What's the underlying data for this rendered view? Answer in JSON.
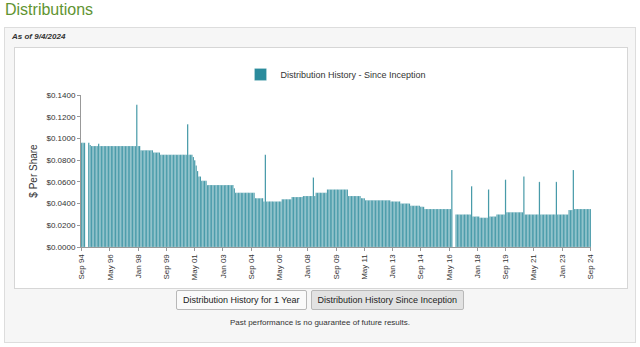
{
  "page": {
    "heading": "Distributions",
    "as_of": "As of 9/4/2024",
    "buttons": [
      "Distribution History for 1 Year",
      "Distribution History Since Inception"
    ],
    "footnote": "Past performance is no guarantee of future results."
  },
  "chart_data": {
    "type": "bar",
    "y_label": "$ Per Share",
    "legend": "top",
    "grid": false,
    "ylim": [
      0,
      0.14
    ],
    "yticks": [
      {
        "value": 0,
        "label": "$0.0000"
      },
      {
        "value": 0.02,
        "label": "$0.0200"
      },
      {
        "value": 0.04,
        "label": "$0.0400"
      },
      {
        "value": 0.06,
        "label": "$0.0600"
      },
      {
        "value": 0.08,
        "label": "$0.0800"
      },
      {
        "value": 0.1,
        "label": "$0.1000"
      },
      {
        "value": 0.12,
        "label": "$0.1200"
      },
      {
        "value": 0.14,
        "label": "$0.1400"
      }
    ],
    "categories": [
      "Sep 94",
      null,
      null,
      null,
      null,
      null,
      null,
      null,
      null,
      null,
      null,
      null,
      null,
      null,
      null,
      null,
      null,
      null,
      null,
      null,
      "May 96",
      null,
      null,
      null,
      null,
      null,
      null,
      null,
      null,
      null,
      null,
      null,
      null,
      null,
      null,
      null,
      null,
      null,
      null,
      null,
      "Jan 98",
      null,
      null,
      null,
      null,
      null,
      null,
      null,
      null,
      null,
      null,
      null,
      null,
      null,
      null,
      null,
      null,
      null,
      null,
      null,
      "Sep 99",
      null,
      null,
      null,
      null,
      null,
      null,
      null,
      null,
      null,
      null,
      null,
      null,
      null,
      null,
      null,
      null,
      null,
      null,
      null,
      "May 01",
      null,
      null,
      null,
      null,
      null,
      null,
      null,
      null,
      null,
      null,
      null,
      null,
      null,
      null,
      null,
      null,
      null,
      null,
      null,
      "Jan 03",
      null,
      null,
      null,
      null,
      null,
      null,
      null,
      null,
      null,
      null,
      null,
      null,
      null,
      null,
      null,
      null,
      null,
      null,
      null,
      "Sep 04",
      null,
      null,
      null,
      null,
      null,
      null,
      null,
      null,
      null,
      null,
      null,
      null,
      null,
      null,
      null,
      null,
      null,
      null,
      null,
      "May 06",
      null,
      null,
      null,
      null,
      null,
      null,
      null,
      null,
      null,
      null,
      null,
      null,
      null,
      null,
      null,
      null,
      null,
      null,
      null,
      "Jan 08",
      null,
      null,
      null,
      null,
      null,
      null,
      null,
      null,
      null,
      null,
      null,
      null,
      null,
      null,
      null,
      null,
      null,
      null,
      null,
      "Sep 09",
      null,
      null,
      null,
      null,
      null,
      null,
      null,
      null,
      null,
      null,
      null,
      null,
      null,
      null,
      null,
      null,
      null,
      null,
      null,
      "May 11",
      null,
      null,
      null,
      null,
      null,
      null,
      null,
      null,
      null,
      null,
      null,
      null,
      null,
      null,
      null,
      null,
      null,
      null,
      null,
      "Jan 13",
      null,
      null,
      null,
      null,
      null,
      null,
      null,
      null,
      null,
      null,
      null,
      null,
      null,
      null,
      null,
      null,
      null,
      null,
      null,
      "Sep 14",
      null,
      null,
      null,
      null,
      null,
      null,
      null,
      null,
      null,
      null,
      null,
      null,
      null,
      null,
      null,
      null,
      null,
      null,
      null,
      "May 16",
      null,
      null,
      null,
      null,
      null,
      null,
      null,
      null,
      null,
      null,
      null,
      null,
      null,
      null,
      null,
      null,
      null,
      null,
      null,
      "Jan 18",
      null,
      null,
      null,
      null,
      null,
      null,
      null,
      null,
      null,
      null,
      null,
      null,
      null,
      null,
      null,
      null,
      null,
      null,
      null,
      "Sep 19",
      null,
      null,
      null,
      null,
      null,
      null,
      null,
      null,
      null,
      null,
      null,
      null,
      null,
      null,
      null,
      null,
      null,
      null,
      null,
      "May 21",
      null,
      null,
      null,
      null,
      null,
      null,
      null,
      null,
      null,
      null,
      null,
      null,
      null,
      null,
      null,
      null,
      null,
      null,
      null,
      "Jan 23",
      null,
      null,
      null,
      null,
      null,
      null,
      null,
      null,
      null,
      null,
      null,
      null,
      null,
      null,
      null,
      null,
      null,
      null,
      null,
      "Sep 24"
    ],
    "series": [
      {
        "name": "Distribution History - Since Inception",
        "color": "#2b8b9c",
        "values": [
          0.096,
          0.096,
          0.096,
          null,
          null,
          0.096,
          0.094,
          0.093,
          0.093,
          0.093,
          0.093,
          0.093,
          0.095,
          0.093,
          0.093,
          0.093,
          0.093,
          0.093,
          0.093,
          0.093,
          0.093,
          0.093,
          0.093,
          0.093,
          0.093,
          0.093,
          0.093,
          0.093,
          0.093,
          0.093,
          0.093,
          0.093,
          0.093,
          0.093,
          0.093,
          0.093,
          0.093,
          0.093,
          0.093,
          0.131,
          0.093,
          0.093,
          0.089,
          0.089,
          0.089,
          0.089,
          0.089,
          0.089,
          0.089,
          0.089,
          0.089,
          0.087,
          0.087,
          0.087,
          0.087,
          0.087,
          0.085,
          0.085,
          0.085,
          0.085,
          0.085,
          0.085,
          0.085,
          0.085,
          0.085,
          0.085,
          0.085,
          0.085,
          0.085,
          0.085,
          0.085,
          0.085,
          0.085,
          0.085,
          0.085,
          0.113,
          0.085,
          0.085,
          0.085,
          0.083,
          0.08,
          0.075,
          0.07,
          0.065,
          0.065,
          0.061,
          0.061,
          0.061,
          0.061,
          0.057,
          0.057,
          0.057,
          0.057,
          0.057,
          0.057,
          0.057,
          0.057,
          0.057,
          0.057,
          0.057,
          0.057,
          0.057,
          0.057,
          0.057,
          0.057,
          0.057,
          0.057,
          0.057,
          0.054,
          0.05,
          0.05,
          0.05,
          0.05,
          0.05,
          0.05,
          0.05,
          0.05,
          0.05,
          0.05,
          0.05,
          0.05,
          0.05,
          0.05,
          0.045,
          0.045,
          0.045,
          0.045,
          0.045,
          0.045,
          0.042,
          0.085,
          0.042,
          0.042,
          0.042,
          0.042,
          0.042,
          0.042,
          0.042,
          0.042,
          0.042,
          0.042,
          0.042,
          0.044,
          0.044,
          0.044,
          0.044,
          0.044,
          0.044,
          0.044,
          0.046,
          0.046,
          0.046,
          0.046,
          0.046,
          0.046,
          0.046,
          0.046,
          0.047,
          0.047,
          0.047,
          0.047,
          0.047,
          0.047,
          0.047,
          0.064,
          0.047,
          0.05,
          0.05,
          0.05,
          0.05,
          0.05,
          0.05,
          0.05,
          0.05,
          0.053,
          0.053,
          0.053,
          0.053,
          0.053,
          0.053,
          0.053,
          0.053,
          0.053,
          0.053,
          0.053,
          0.053,
          0.053,
          0.053,
          0.053,
          0.047,
          0.047,
          0.047,
          0.047,
          0.047,
          0.047,
          0.047,
          0.047,
          0.047,
          0.045,
          0.045,
          0.045,
          0.043,
          0.043,
          0.043,
          0.043,
          0.043,
          0.043,
          0.043,
          0.043,
          0.043,
          0.043,
          0.043,
          0.043,
          0.043,
          0.043,
          0.043,
          0.043,
          0.043,
          0.043,
          0.042,
          0.042,
          0.042,
          0.042,
          0.042,
          0.042,
          0.042,
          0.04,
          0.04,
          0.04,
          0.04,
          0.04,
          0.04,
          0.04,
          0.038,
          0.038,
          0.038,
          0.038,
          0.038,
          0.038,
          0.038,
          0.037,
          0.037,
          0.037,
          0.035,
          0.035,
          0.035,
          0.035,
          0.035,
          0.035,
          0.035,
          0.035,
          0.035,
          0.035,
          0.035,
          0.035,
          0.035,
          0.035,
          0.035,
          0.035,
          0.035,
          0.035,
          0.035,
          0.071,
          null,
          null,
          0.03,
          0.03,
          0.03,
          0.03,
          0.03,
          0.03,
          0.03,
          0.03,
          0.03,
          0.03,
          0.03,
          0.056,
          0.028,
          0.028,
          0.028,
          0.028,
          0.028,
          0.027,
          0.027,
          0.027,
          0.027,
          0.027,
          0.027,
          0.053,
          0.028,
          0.028,
          0.028,
          0.028,
          0.028,
          0.03,
          0.03,
          0.03,
          0.03,
          0.03,
          0.03,
          0.062,
          0.032,
          0.032,
          0.032,
          0.032,
          0.032,
          0.032,
          0.032,
          0.032,
          0.032,
          0.032,
          0.032,
          0.032,
          0.065,
          0.03,
          0.03,
          0.03,
          0.03,
          0.03,
          0.03,
          0.03,
          0.03,
          0.03,
          0.03,
          0.06,
          0.03,
          0.03,
          0.03,
          0.03,
          0.03,
          0.03,
          0.03,
          0.03,
          0.03,
          0.03,
          0.03,
          0.06,
          0.03,
          0.03,
          0.03,
          0.03,
          0.03,
          0.03,
          0.03,
          0.03,
          0.034,
          0.034,
          0.034,
          0.071,
          0.035,
          0.035,
          0.035,
          0.035,
          0.035,
          0.035,
          0.035,
          0.035,
          0.035,
          0.035,
          0.035,
          0.035
        ]
      }
    ]
  }
}
